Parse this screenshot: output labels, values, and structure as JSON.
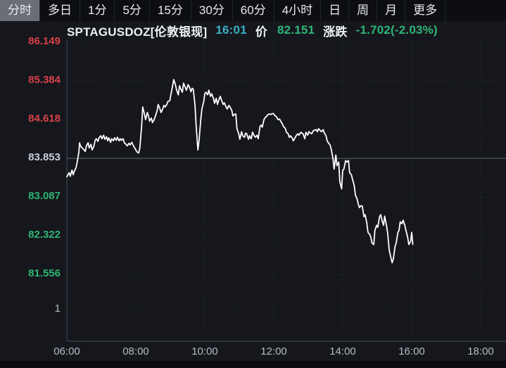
{
  "colors": {
    "background": "#15171c",
    "tabbar_bg": "#0c0e12",
    "tab_selected_bg": "#6a6f76",
    "time_teal": "#3db1c3",
    "price_green": "#31b577",
    "label_red": "#d8414a",
    "label_white": "#c9ced6",
    "label_green": "#2eb573",
    "axis_gray": "#b6bcc4",
    "grid_dotted": "#2c313a",
    "grid_midline": "#596069",
    "pane_border": "#3b414b",
    "price_line": "#ffffff"
  },
  "tabbar": {
    "items": [
      {
        "label": "分时",
        "selected": true
      },
      {
        "label": "多日",
        "selected": false
      },
      {
        "label": "1分",
        "selected": false
      },
      {
        "label": "5分",
        "selected": false
      },
      {
        "label": "15分",
        "selected": false
      },
      {
        "label": "30分",
        "selected": false
      },
      {
        "label": "60分",
        "selected": false
      },
      {
        "label": "4小时",
        "selected": false
      },
      {
        "label": "日",
        "selected": false
      },
      {
        "label": "周",
        "selected": false
      },
      {
        "label": "月",
        "selected": false
      },
      {
        "label": "更多",
        "selected": false
      }
    ]
  },
  "ticker": {
    "symbol": "SPTAGUSDOZ[伦敦银现]",
    "time": "16:01",
    "price_label": "价",
    "price": "82.151",
    "change_label": "涨跌",
    "change": "-1.702(-2.03%)"
  },
  "chart_data": {
    "type": "line",
    "title": "SPTAGUSDOZ 伦敦银现 分时 (intraday line)",
    "legend_position": "none",
    "grid": "dotted",
    "x_axis": {
      "labels": [
        "06:00",
        "08:00",
        "10:00",
        "12:00",
        "14:00",
        "16:00",
        "18:00"
      ],
      "minutes_per_gridline": 120,
      "start_label": "06:00",
      "end_label": "18:00"
    },
    "y_axis": {
      "labels": [
        {
          "text": "86.149",
          "color": "#d8414a"
        },
        {
          "text": "85.384",
          "color": "#d8414a"
        },
        {
          "text": "84.618",
          "color": "#d8414a"
        },
        {
          "text": "83.853",
          "color": "#c9ced6"
        },
        {
          "text": "83.087",
          "color": "#2eb573"
        },
        {
          "text": "82.322",
          "color": "#2eb573"
        },
        {
          "text": "81.556",
          "color": "#2eb573"
        }
      ],
      "midline_value": 83.853,
      "volume_axis_label": {
        "text": "1",
        "color": "#b6bcc4"
      }
    },
    "last_price": 82.151,
    "change": -1.702,
    "change_percent": "-2.03%",
    "series": [
      {
        "name": "price",
        "color": "#ffffff",
        "x_unit": "minutes_after_06:00",
        "points": [
          [
            0,
            83.49
          ],
          [
            4,
            83.57
          ],
          [
            6,
            83.5
          ],
          [
            9,
            83.62
          ],
          [
            11,
            83.53
          ],
          [
            13,
            83.6
          ],
          [
            16,
            83.67
          ],
          [
            18,
            83.78
          ],
          [
            21,
            83.99
          ],
          [
            22,
            84.16
          ],
          [
            24,
            84.09
          ],
          [
            29,
            84.03
          ],
          [
            32,
            83.99
          ],
          [
            34,
            84.1
          ],
          [
            37,
            84.16
          ],
          [
            39,
            84.06
          ],
          [
            42,
            84.13
          ],
          [
            44,
            84.02
          ],
          [
            47,
            84.09
          ],
          [
            49,
            84.2
          ],
          [
            51,
            84.24
          ],
          [
            54,
            84.19
          ],
          [
            56,
            84.26
          ],
          [
            59,
            84.3
          ],
          [
            61,
            84.24
          ],
          [
            64,
            84.31
          ],
          [
            66,
            84.23
          ],
          [
            69,
            84.28
          ],
          [
            71,
            84.2
          ],
          [
            73,
            84.26
          ],
          [
            76,
            84.17
          ],
          [
            78,
            84.24
          ],
          [
            81,
            84.2
          ],
          [
            83,
            84.26
          ],
          [
            86,
            84.21
          ],
          [
            88,
            84.27
          ],
          [
            91,
            84.2
          ],
          [
            93,
            84.24
          ],
          [
            95,
            84.21
          ],
          [
            98,
            84.24
          ],
          [
            100,
            84.16
          ],
          [
            103,
            84.13
          ],
          [
            105,
            84.1
          ],
          [
            108,
            84.15
          ],
          [
            110,
            84.12
          ],
          [
            113,
            84.17
          ],
          [
            115,
            84.12
          ],
          [
            118,
            84.06
          ],
          [
            120,
            84.02
          ],
          [
            122,
            83.98
          ],
          [
            125,
            83.96
          ],
          [
            127,
            84.06
          ],
          [
            130,
            84.48
          ],
          [
            132,
            84.87
          ],
          [
            135,
            84.72
          ],
          [
            137,
            84.62
          ],
          [
            140,
            84.76
          ],
          [
            142,
            84.69
          ],
          [
            144,
            84.59
          ],
          [
            147,
            84.65
          ],
          [
            149,
            84.56
          ],
          [
            152,
            84.62
          ],
          [
            154,
            84.69
          ],
          [
            157,
            84.79
          ],
          [
            159,
            84.92
          ],
          [
            162,
            84.83
          ],
          [
            164,
            84.76
          ],
          [
            166,
            84.81
          ],
          [
            169,
            84.9
          ],
          [
            171,
            84.87
          ],
          [
            174,
            84.92
          ],
          [
            176,
            84.98
          ],
          [
            179,
            84.99
          ],
          [
            181,
            85.11
          ],
          [
            184,
            85.29
          ],
          [
            186,
            85.41
          ],
          [
            189,
            85.31
          ],
          [
            191,
            85.2
          ],
          [
            194,
            85.11
          ],
          [
            196,
            85.29
          ],
          [
            198,
            85.23
          ],
          [
            201,
            85.16
          ],
          [
            203,
            85.34
          ],
          [
            206,
            85.26
          ],
          [
            208,
            85.2
          ],
          [
            211,
            85.31
          ],
          [
            213,
            85.27
          ],
          [
            216,
            85.17
          ],
          [
            218,
            85.24
          ],
          [
            220,
            85.22
          ],
          [
            223,
            84.9
          ],
          [
            225,
            84.48
          ],
          [
            228,
            84.02
          ],
          [
            230,
            84.2
          ],
          [
            233,
            84.62
          ],
          [
            235,
            84.83
          ],
          [
            238,
            84.97
          ],
          [
            240,
            85.13
          ],
          [
            242,
            85.16
          ],
          [
            245,
            85.11
          ],
          [
            247,
            85.2
          ],
          [
            250,
            85.08
          ],
          [
            252,
            85.13
          ],
          [
            255,
            85.04
          ],
          [
            257,
            84.94
          ],
          [
            260,
            85.04
          ],
          [
            262,
            84.92
          ],
          [
            264,
            84.99
          ],
          [
            267,
            85.08
          ],
          [
            269,
            85.01
          ],
          [
            272,
            84.92
          ],
          [
            274,
            84.95
          ],
          [
            277,
            84.87
          ],
          [
            279,
            84.83
          ],
          [
            282,
            84.9
          ],
          [
            284,
            84.87
          ],
          [
            287,
            84.8
          ],
          [
            289,
            84.69
          ],
          [
            291,
            84.72
          ],
          [
            294,
            84.73
          ],
          [
            296,
            84.44
          ],
          [
            299,
            84.34
          ],
          [
            301,
            84.23
          ],
          [
            304,
            84.38
          ],
          [
            306,
            84.3
          ],
          [
            309,
            84.27
          ],
          [
            311,
            84.35
          ],
          [
            313,
            84.34
          ],
          [
            316,
            84.23
          ],
          [
            318,
            84.3
          ],
          [
            321,
            84.24
          ],
          [
            323,
            84.37
          ],
          [
            326,
            84.3
          ],
          [
            328,
            84.27
          ],
          [
            331,
            84.31
          ],
          [
            333,
            84.24
          ],
          [
            336,
            84.48
          ],
          [
            338,
            84.51
          ],
          [
            340,
            84.47
          ],
          [
            343,
            84.62
          ],
          [
            345,
            84.66
          ],
          [
            348,
            84.69
          ],
          [
            350,
            84.72
          ],
          [
            353,
            84.73
          ],
          [
            355,
            84.72
          ],
          [
            358,
            84.74
          ],
          [
            360,
            84.73
          ],
          [
            362,
            84.7
          ],
          [
            365,
            84.67
          ],
          [
            367,
            84.62
          ],
          [
            370,
            84.63
          ],
          [
            372,
            84.59
          ],
          [
            375,
            84.53
          ],
          [
            377,
            84.48
          ],
          [
            380,
            84.45
          ],
          [
            382,
            84.37
          ],
          [
            385,
            84.34
          ],
          [
            387,
            84.27
          ],
          [
            389,
            84.3
          ],
          [
            392,
            84.26
          ],
          [
            394,
            84.2
          ],
          [
            397,
            84.26
          ],
          [
            399,
            84.3
          ],
          [
            402,
            84.34
          ],
          [
            404,
            84.31
          ],
          [
            407,
            84.37
          ],
          [
            409,
            84.35
          ],
          [
            411,
            84.34
          ],
          [
            414,
            84.24
          ],
          [
            416,
            84.37
          ],
          [
            419,
            84.31
          ],
          [
            421,
            84.38
          ],
          [
            424,
            84.35
          ],
          [
            426,
            84.34
          ],
          [
            429,
            84.4
          ],
          [
            431,
            84.41
          ],
          [
            434,
            84.42
          ],
          [
            436,
            84.38
          ],
          [
            438,
            84.44
          ],
          [
            441,
            84.4
          ],
          [
            443,
            84.38
          ],
          [
            446,
            84.42
          ],
          [
            448,
            84.35
          ],
          [
            451,
            84.3
          ],
          [
            453,
            84.2
          ],
          [
            455,
            84.16
          ],
          [
            458,
            84.12
          ],
          [
            460,
            84.03
          ],
          [
            463,
            83.85
          ],
          [
            465,
            83.64
          ],
          [
            468,
            83.92
          ],
          [
            470,
            83.71
          ],
          [
            473,
            83.78
          ],
          [
            475,
            83.39
          ],
          [
            478,
            83.25
          ],
          [
            480,
            83.62
          ],
          [
            482,
            83.64
          ],
          [
            485,
            83.81
          ],
          [
            487,
            83.78
          ],
          [
            490,
            83.81
          ],
          [
            492,
            83.57
          ],
          [
            495,
            83.53
          ],
          [
            497,
            83.44
          ],
          [
            500,
            83.32
          ],
          [
            502,
            83.13
          ],
          [
            505,
            83.05
          ],
          [
            507,
            82.95
          ],
          [
            509,
            82.88
          ],
          [
            512,
            82.92
          ],
          [
            514,
            82.91
          ],
          [
            517,
            82.7
          ],
          [
            519,
            82.74
          ],
          [
            522,
            82.57
          ],
          [
            524,
            82.39
          ],
          [
            527,
            82.35
          ],
          [
            529,
            82.29
          ],
          [
            531,
            82.18
          ],
          [
            534,
            82.15
          ],
          [
            536,
            82.43
          ],
          [
            539,
            82.53
          ],
          [
            541,
            82.49
          ],
          [
            544,
            82.7
          ],
          [
            546,
            82.74
          ],
          [
            549,
            82.6
          ],
          [
            551,
            82.53
          ],
          [
            553,
            82.71
          ],
          [
            556,
            82.53
          ],
          [
            558,
            82.39
          ],
          [
            561,
            82.04
          ],
          [
            563,
            81.93
          ],
          [
            566,
            81.79
          ],
          [
            568,
            81.86
          ],
          [
            571,
            82.11
          ],
          [
            573,
            82.18
          ],
          [
            576,
            82.39
          ],
          [
            578,
            82.43
          ],
          [
            580,
            82.6
          ],
          [
            583,
            82.56
          ],
          [
            585,
            82.63
          ],
          [
            588,
            82.53
          ],
          [
            590,
            82.43
          ],
          [
            593,
            82.29
          ],
          [
            595,
            82.15
          ],
          [
            598,
            82.21
          ],
          [
            600,
            82.39
          ],
          [
            602,
            82.151
          ]
        ]
      }
    ]
  }
}
